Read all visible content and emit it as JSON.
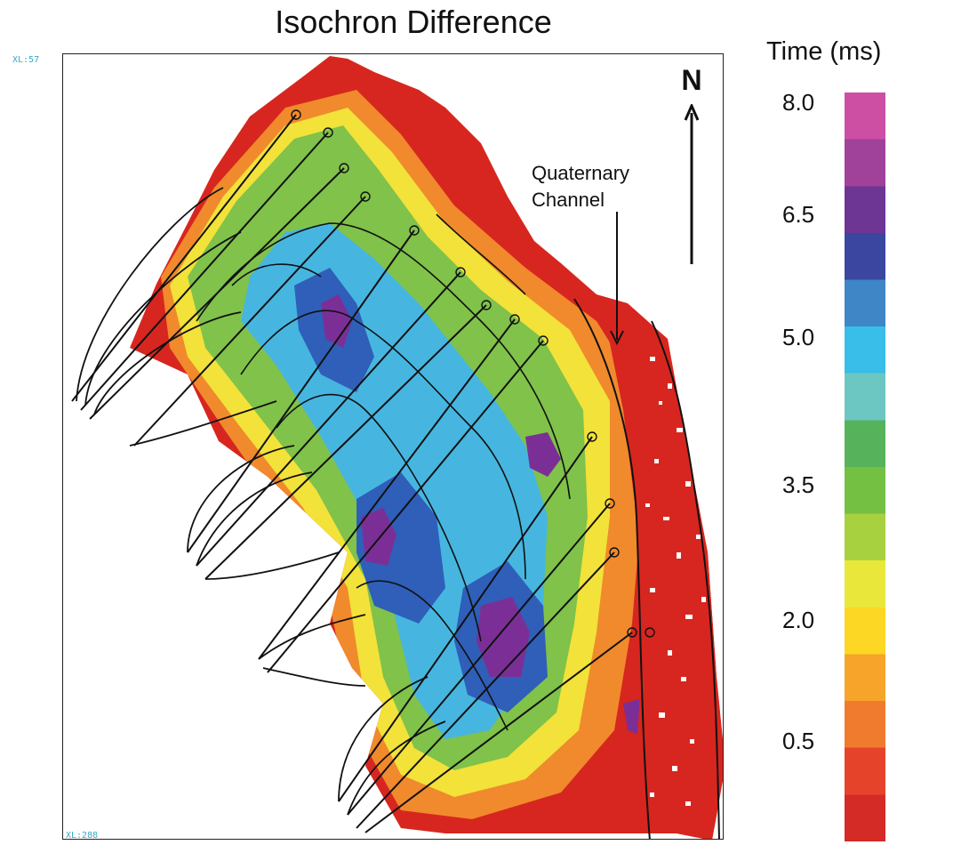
{
  "title": "Isochron Difference",
  "corner_labels": {
    "top_left": "XL:57",
    "bottom_left": "XL:288"
  },
  "north_label": "N",
  "annotation": {
    "line1": "Quaternary",
    "line2": "Channel"
  },
  "colorbar": {
    "title": "Time (ms)",
    "ticks": [
      "8.0",
      "6.5",
      "5.0",
      "3.5",
      "2.0",
      "0.5"
    ],
    "range": [
      0.0,
      8.0
    ],
    "colors": [
      "#d42b27",
      "#e5442b",
      "#f07b2e",
      "#f7a52a",
      "#fcd724",
      "#e9e83a",
      "#a8d13f",
      "#74c043",
      "#57b25c",
      "#6cc7c3",
      "#39bde9",
      "#3e86c6",
      "#3b46a0",
      "#6d3594",
      "#a0419a",
      "#cc4fa4"
    ]
  },
  "map_colors": {
    "red": "#d7261f",
    "orange": "#ef7f2a",
    "yellow": "#f2e23a",
    "green": "#7fc34a",
    "cyan": "#46b6e0",
    "blue": "#2f5fb8",
    "purple": "#7b2f96",
    "line": "#111111"
  }
}
